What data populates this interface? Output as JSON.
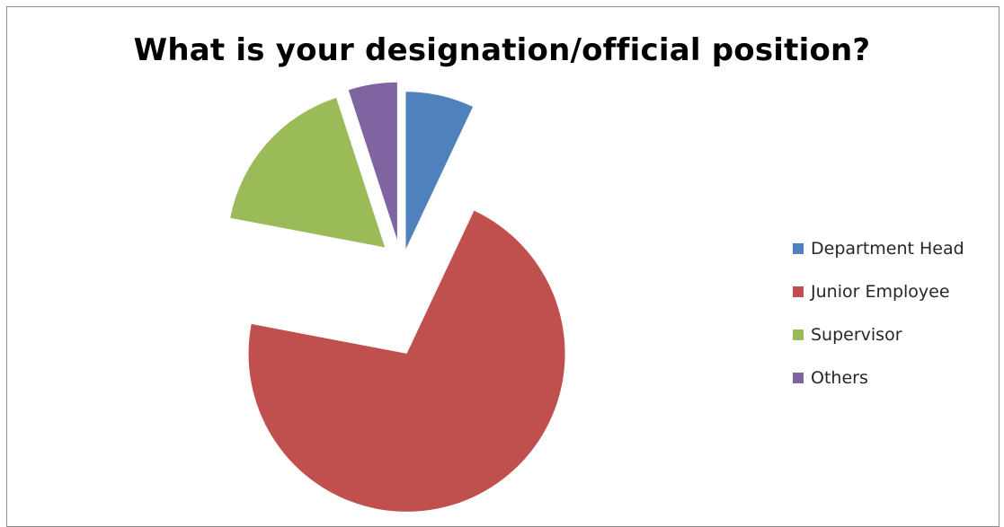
{
  "chart_data": {
    "type": "pie",
    "title": "What is your designation/official position?",
    "categories": [
      "Department Head",
      "Junior Employee",
      "Supervisor",
      "Others"
    ],
    "values": [
      7,
      71,
      17,
      5
    ],
    "unit": "percent (estimated from slice angles)",
    "colors": [
      "#4F81BD",
      "#C0504D",
      "#9BBB59",
      "#8064A2"
    ],
    "exploded": true,
    "legend_position": "right"
  }
}
